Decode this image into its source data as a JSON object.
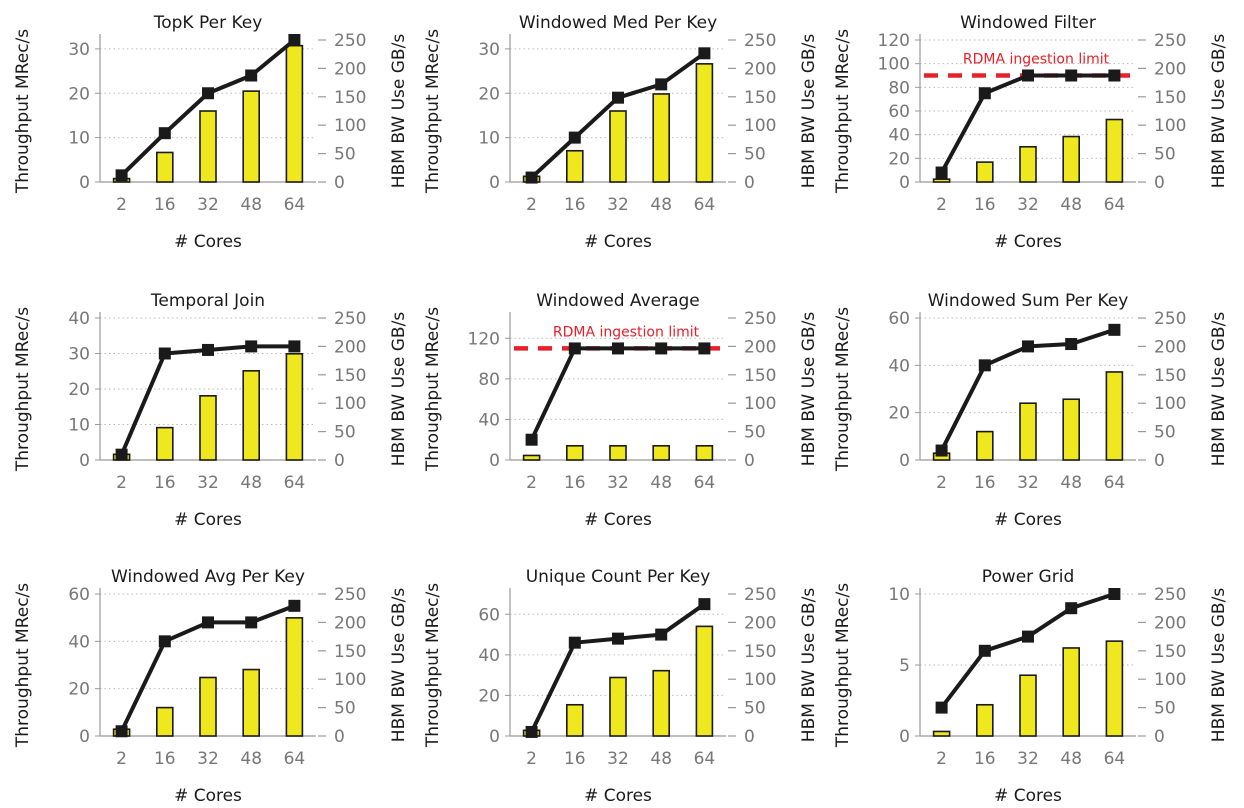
{
  "figure": {
    "shared": {
      "categories": [
        "2",
        "16",
        "32",
        "48",
        "64"
      ],
      "xlabel": "# Cores",
      "ylabel_left": "Throughput MRec/s",
      "ylabel_right": "HBM BW Use GB/s",
      "right_ticks": [
        0,
        50,
        100,
        150,
        200,
        250
      ],
      "right_lim": [
        0,
        250
      ]
    },
    "colors": {
      "bar_fill": "#f0e81e",
      "bar_stroke": "#1a1a1a",
      "line": "#1a1a1a",
      "limit_line": "#e8202a",
      "tick_text": "#777777"
    }
  },
  "chart_data": [
    {
      "type": "bar+line",
      "title": "TopK Per Key",
      "categories": [
        "2",
        "16",
        "32",
        "48",
        "64"
      ],
      "xlabel": "# Cores",
      "ylabel": "Throughput MRec/s",
      "y2label": "HBM BW Use GB/s",
      "ylim": [
        0,
        32
      ],
      "yticks": [
        0,
        10,
        20,
        30
      ],
      "y2lim": [
        0,
        250
      ],
      "y2ticks": [
        0,
        50,
        100,
        150,
        200,
        250
      ],
      "series": [
        {
          "axis": "right",
          "kind": "bar",
          "values": [
            6,
            52,
            125,
            160,
            240
          ]
        },
        {
          "axis": "left",
          "kind": "line",
          "values": [
            1.5,
            11,
            20,
            24,
            32
          ]
        }
      ]
    },
    {
      "type": "bar+line",
      "title": "Windowed Med Per Key",
      "categories": [
        "2",
        "16",
        "32",
        "48",
        "64"
      ],
      "xlabel": "# Cores",
      "ylabel": "Throughput MRec/s",
      "y2label": "HBM BW Use GB/s",
      "ylim": [
        0,
        32
      ],
      "yticks": [
        0,
        10,
        20,
        30
      ],
      "y2lim": [
        0,
        250
      ],
      "y2ticks": [
        0,
        50,
        100,
        150,
        200,
        250
      ],
      "series": [
        {
          "axis": "right",
          "kind": "bar",
          "values": [
            10,
            55,
            125,
            155,
            208
          ]
        },
        {
          "axis": "left",
          "kind": "line",
          "values": [
            1,
            10,
            19,
            22,
            29
          ]
        }
      ]
    },
    {
      "type": "bar+line",
      "title": "Windowed Filter",
      "categories": [
        "2",
        "16",
        "32",
        "48",
        "64"
      ],
      "xlabel": "# Cores",
      "ylabel": "Throughput MRec/s",
      "y2label": "HBM BW Use GB/s",
      "ylim": [
        0,
        120
      ],
      "yticks": [
        0,
        20,
        40,
        60,
        80,
        100,
        120
      ],
      "y2lim": [
        0,
        250
      ],
      "y2ticks": [
        0,
        50,
        100,
        150,
        200,
        250
      ],
      "limit": {
        "value": 90,
        "label": "RDMA ingestion limit"
      },
      "series": [
        {
          "axis": "right",
          "kind": "bar",
          "values": [
            5,
            35,
            62,
            80,
            110
          ]
        },
        {
          "axis": "left",
          "kind": "line",
          "values": [
            8,
            75,
            90,
            90,
            90
          ]
        }
      ]
    },
    {
      "type": "bar+line",
      "title": "Temporal Join",
      "categories": [
        "2",
        "16",
        "32",
        "48",
        "64"
      ],
      "xlabel": "# Cores",
      "ylabel": "Throughput MRec/s",
      "y2label": "HBM BW Use GB/s",
      "ylim": [
        0,
        40
      ],
      "yticks": [
        0,
        10,
        20,
        30,
        40
      ],
      "y2lim": [
        0,
        250
      ],
      "y2ticks": [
        0,
        50,
        100,
        150,
        200,
        250
      ],
      "series": [
        {
          "axis": "right",
          "kind": "bar",
          "values": [
            10,
            57,
            113,
            157,
            187
          ]
        },
        {
          "axis": "left",
          "kind": "line",
          "values": [
            1.5,
            30,
            31,
            32,
            32
          ]
        }
      ]
    },
    {
      "type": "bar+line",
      "title": "Windowed Average",
      "categories": [
        "2",
        "16",
        "32",
        "48",
        "64"
      ],
      "xlabel": "# Cores",
      "ylabel": "Throughput MRec/s",
      "y2label": "HBM BW Use GB/s",
      "ylim": [
        0,
        140
      ],
      "yticks": [
        0,
        40,
        80,
        120
      ],
      "y2lim": [
        0,
        250
      ],
      "y2ticks": [
        0,
        50,
        100,
        150,
        200,
        250
      ],
      "limit": {
        "value": 110,
        "label": "RDMA ingestion limit"
      },
      "series": [
        {
          "axis": "right",
          "kind": "bar",
          "values": [
            8,
            25,
            25,
            25,
            25
          ]
        },
        {
          "axis": "left",
          "kind": "line",
          "values": [
            20,
            110,
            110,
            110,
            110
          ]
        }
      ]
    },
    {
      "type": "bar+line",
      "title": "Windowed Sum Per Key",
      "categories": [
        "2",
        "16",
        "32",
        "48",
        "64"
      ],
      "xlabel": "# Cores",
      "ylabel": "Throughput MRec/s",
      "y2label": "HBM BW Use GB/s",
      "ylim": [
        0,
        60
      ],
      "yticks": [
        0,
        20,
        40,
        60
      ],
      "y2lim": [
        0,
        250
      ],
      "y2ticks": [
        0,
        50,
        100,
        150,
        200,
        250
      ],
      "series": [
        {
          "axis": "right",
          "kind": "bar",
          "values": [
            12,
            50,
            100,
            107,
            155
          ]
        },
        {
          "axis": "left",
          "kind": "line",
          "values": [
            4,
            40,
            48,
            49,
            55
          ]
        }
      ]
    },
    {
      "type": "bar+line",
      "title": "Windowed Avg Per Key",
      "categories": [
        "2",
        "16",
        "32",
        "48",
        "64"
      ],
      "xlabel": "# Cores",
      "ylabel": "Throughput MRec/s",
      "y2label": "HBM BW Use GB/s",
      "ylim": [
        0,
        60
      ],
      "yticks": [
        0,
        20,
        40,
        60
      ],
      "y2lim": [
        0,
        250
      ],
      "y2ticks": [
        0,
        50,
        100,
        150,
        200,
        250
      ],
      "series": [
        {
          "axis": "right",
          "kind": "bar",
          "values": [
            12,
            50,
            103,
            117,
            208
          ]
        },
        {
          "axis": "left",
          "kind": "line",
          "values": [
            2,
            40,
            48,
            48,
            55
          ]
        }
      ]
    },
    {
      "type": "bar+line",
      "title": "Unique Count Per Key",
      "categories": [
        "2",
        "16",
        "32",
        "48",
        "64"
      ],
      "xlabel": "# Cores",
      "ylabel": "Throughput MRec/s",
      "y2label": "HBM BW Use GB/s",
      "ylim": [
        0,
        70
      ],
      "yticks": [
        0,
        20,
        40,
        60
      ],
      "y2lim": [
        0,
        250
      ],
      "y2ticks": [
        0,
        50,
        100,
        150,
        200,
        250
      ],
      "series": [
        {
          "axis": "right",
          "kind": "bar",
          "values": [
            10,
            55,
            103,
            115,
            193
          ]
        },
        {
          "axis": "left",
          "kind": "line",
          "values": [
            2,
            46,
            48,
            50,
            65
          ]
        }
      ]
    },
    {
      "type": "bar+line",
      "title": "Power Grid",
      "categories": [
        "2",
        "16",
        "32",
        "48",
        "64"
      ],
      "xlabel": "# Cores",
      "ylabel": "Throughput MRec/s",
      "y2label": "HBM BW Use GB/s",
      "ylim": [
        0,
        10
      ],
      "yticks": [
        0,
        5,
        10
      ],
      "y2lim": [
        0,
        250
      ],
      "y2ticks": [
        0,
        50,
        100,
        150,
        200,
        250
      ],
      "series": [
        {
          "axis": "right",
          "kind": "bar",
          "values": [
            8,
            55,
            107,
            155,
            167
          ]
        },
        {
          "axis": "left",
          "kind": "line",
          "values": [
            2,
            6,
            7,
            9,
            10
          ]
        }
      ]
    }
  ]
}
